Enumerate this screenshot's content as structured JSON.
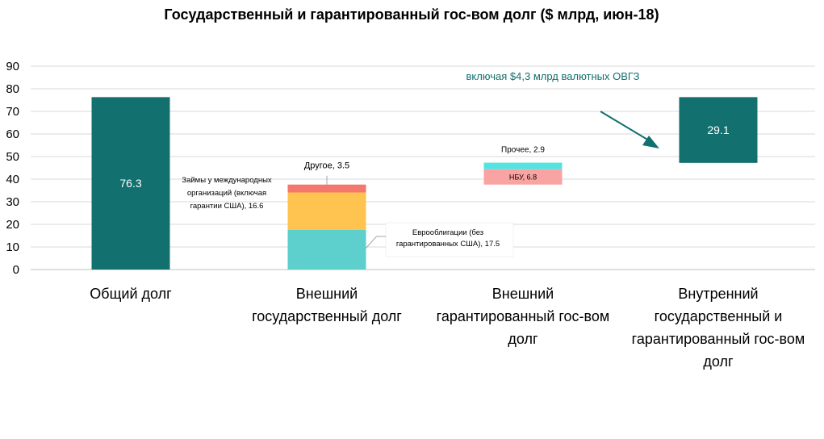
{
  "chart_data": {
    "type": "waterfall",
    "title": "Государственный и гарантированный гос-вом долг ($ млрд, июн-18)",
    "ylim": [
      0,
      90
    ],
    "yticks": [
      0,
      10,
      20,
      30,
      40,
      50,
      60,
      70,
      80,
      90
    ],
    "grid": true,
    "categories": [
      [
        "Общий долг"
      ],
      [
        "Внешний",
        "государственный долг"
      ],
      [
        "Внешний",
        "гарантированный гос-вом",
        "долг"
      ],
      [
        "Внутренний",
        "государственный и",
        "гарантированный гос-вом",
        "долг"
      ]
    ],
    "segments": [
      {
        "category": 0,
        "base": 0,
        "value": 76.3,
        "color": "#12706E",
        "label": "76.3",
        "label_style": "inside"
      },
      {
        "category": 1,
        "base": 0,
        "value": 17.5,
        "color": "#5DCFCD",
        "label_lines": [
          "Еврооблигации (без",
          "гарантированных США),  17.5"
        ],
        "label_style": "callout-right"
      },
      {
        "category": 1,
        "base": 17.5,
        "value": 16.6,
        "color": "#FFC34F",
        "label_lines": [
          "Займы у международных",
          "организаций (включая",
          "гарантии США),  16.6"
        ],
        "label_style": "left"
      },
      {
        "category": 1,
        "base": 34.1,
        "value": 3.5,
        "color": "#F4776E",
        "label_lines": [
          "Другое,  3.5"
        ],
        "label_style": "callout-top"
      },
      {
        "category": 2,
        "base": 37.6,
        "value": 6.8,
        "color": "#F9A3A2",
        "label": "НБУ,  6.8",
        "label_style": "inside-small"
      },
      {
        "category": 2,
        "base": 44.4,
        "value": 2.9,
        "color": "#55E3E1",
        "label": "Прочее,  2.9",
        "label_style": "above-small"
      },
      {
        "category": 3,
        "base": 47.2,
        "value": 29.1,
        "color": "#12706E",
        "label": "29.1",
        "label_style": "inside"
      }
    ],
    "annotation": {
      "text": "включая $4,3 млрд валютных ОВГЗ",
      "color": "#12706E",
      "points_to_category": 3
    }
  }
}
